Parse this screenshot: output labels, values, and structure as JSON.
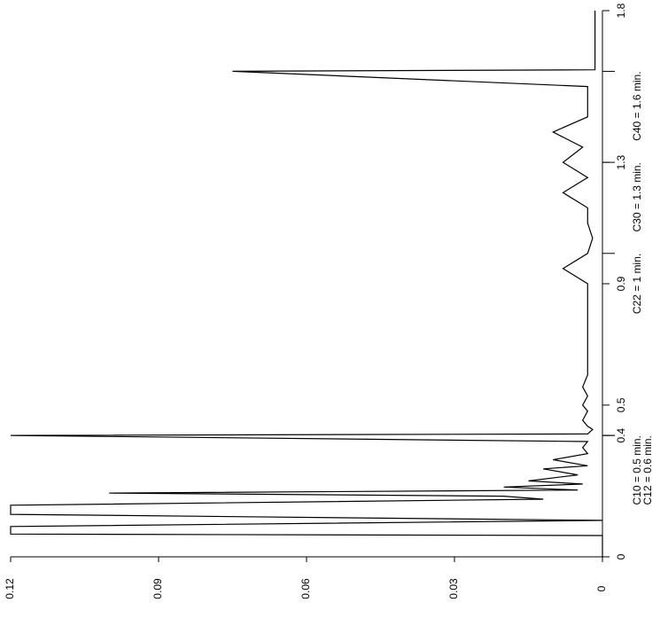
{
  "chart_data": {
    "type": "line",
    "title": "",
    "xlabel": "",
    "ylabel": "",
    "orientation": "rotated-90-clockwise",
    "xlim": [
      0,
      1.8
    ],
    "ylim": [
      0,
      0.12
    ],
    "x_ticks": [
      "0",
      "0.4",
      "0.5",
      "0.9",
      "1.3",
      "1.8"
    ],
    "y_ticks": [
      "0",
      "0.03",
      "0.06",
      "0.09",
      "0.12"
    ],
    "grid": false,
    "line_color": "#000000",
    "annotations": [
      {
        "text": "C10 = 0.5 min.",
        "x": 0.4
      },
      {
        "text": "C12 = 0.6 min.",
        "x": 0.4
      },
      {
        "text": "C22 = 1 min.",
        "x": 1.0
      },
      {
        "text": "C30 = 1.3 min.",
        "x": 1.3
      },
      {
        "text": "C40 = 1.6 min.",
        "x": 1.6
      }
    ],
    "x": [
      0,
      0.02,
      0.05,
      0.07,
      0.075,
      0.09,
      0.095,
      0.1,
      0.12,
      0.14,
      0.15,
      0.17,
      0.19,
      0.2,
      0.21,
      0.22,
      0.23,
      0.24,
      0.25,
      0.27,
      0.29,
      0.3,
      0.32,
      0.34,
      0.36,
      0.38,
      0.4,
      0.405,
      0.42,
      0.43,
      0.45,
      0.48,
      0.5,
      0.53,
      0.56,
      0.6,
      0.65,
      0.7,
      0.75,
      0.8,
      0.85,
      0.9,
      0.95,
      1.0,
      1.05,
      1.1,
      1.15,
      1.2,
      1.25,
      1.3,
      1.35,
      1.4,
      1.45,
      1.5,
      1.55,
      1.6,
      1.605,
      1.62,
      1.65,
      1.7,
      1.75,
      1.8
    ],
    "y": [
      0.0,
      0.0,
      0.0,
      0.0,
      0.12,
      0.12,
      0.12,
      0.12,
      0.0,
      0.12,
      0.12,
      0.12,
      0.012,
      0.02,
      0.1,
      0.005,
      0.02,
      0.004,
      0.015,
      0.005,
      0.012,
      0.003,
      0.01,
      0.003,
      0.004,
      0.003,
      0.12,
      0.003,
      0.002,
      0.003,
      0.004,
      0.003,
      0.004,
      0.003,
      0.004,
      0.003,
      0.003,
      0.003,
      0.003,
      0.003,
      0.003,
      0.003,
      0.008,
      0.003,
      0.002,
      0.003,
      0.003,
      0.008,
      0.003,
      0.008,
      0.004,
      0.01,
      0.003,
      0.003,
      0.003,
      0.075,
      0.0015,
      0.0015,
      0.0015,
      0.0015,
      0.0015,
      0.0015
    ]
  }
}
